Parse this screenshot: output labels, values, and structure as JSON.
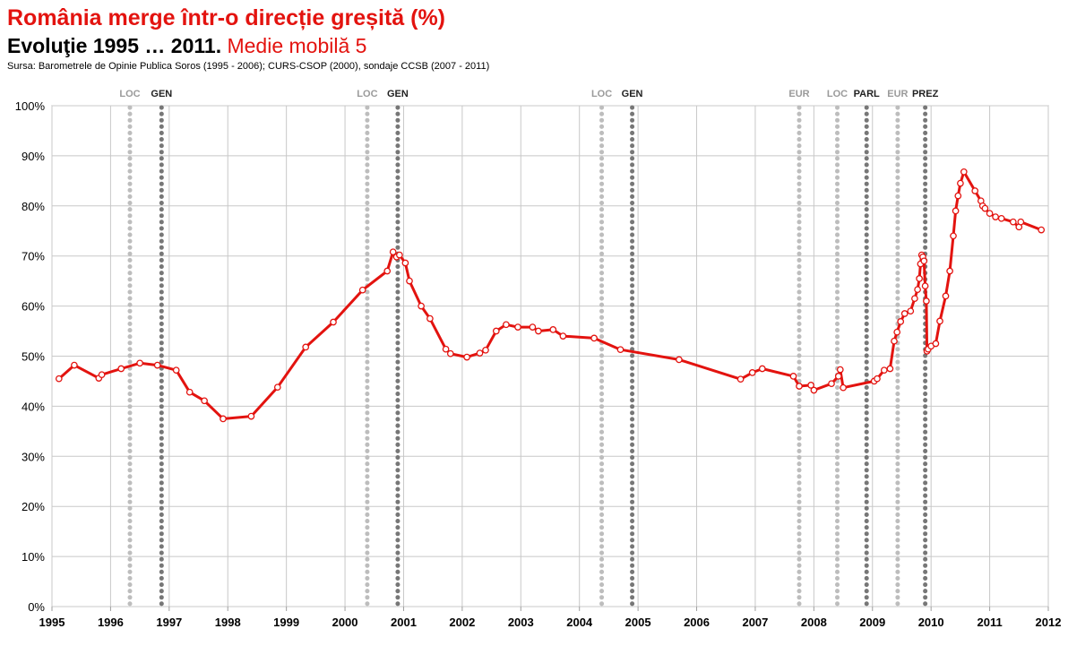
{
  "header": {
    "title": "România merge într-o direcție greșită (%)",
    "subtitle_main": "Evoluţie 1995 … 2011.",
    "subtitle_extra": "Medie mobilă 5",
    "source": "Sursa: Barometrele de Opinie Publica Soros (1995 - 2006); CURS-CSOP (2000), sondaje CCSB (2007 - 2011)"
  },
  "colors": {
    "series": "#e3130f",
    "event_light": "#bdbdbd",
    "event_dark": "#777777",
    "label_light": "#9a9a9a",
    "label_dark": "#222222",
    "grid": "#c8c8c8"
  },
  "chart_data": {
    "type": "line",
    "title": "România merge într-o direcție greșită (%)",
    "xlim": [
      1995,
      2012
    ],
    "ylim": [
      0,
      100
    ],
    "x_ticks": [
      "1995",
      "1996",
      "1997",
      "1998",
      "1999",
      "2000",
      "2001",
      "2002",
      "2003",
      "2004",
      "2005",
      "2006",
      "2007",
      "2008",
      "2009",
      "2010",
      "2011",
      "2012"
    ],
    "y_ticks": [
      "0%",
      "10%",
      "20%",
      "30%",
      "40%",
      "50%",
      "60%",
      "70%",
      "80%",
      "90%",
      "100%"
    ],
    "grid": true,
    "events": [
      {
        "x": 1996.33,
        "label": "LOC",
        "style": "light"
      },
      {
        "x": 1996.87,
        "label": "GEN",
        "style": "dark"
      },
      {
        "x": 2000.38,
        "label": "LOC",
        "style": "light"
      },
      {
        "x": 2000.9,
        "label": "GEN",
        "style": "dark"
      },
      {
        "x": 2004.38,
        "label": "LOC",
        "style": "light"
      },
      {
        "x": 2004.9,
        "label": "GEN",
        "style": "dark"
      },
      {
        "x": 2007.75,
        "label": "EUR",
        "style": "light"
      },
      {
        "x": 2008.4,
        "label": "LOC",
        "style": "light"
      },
      {
        "x": 2008.9,
        "label": "PARL",
        "style": "dark"
      },
      {
        "x": 2009.43,
        "label": "EUR",
        "style": "light"
      },
      {
        "x": 2009.9,
        "label": "PREZ",
        "style": "dark"
      }
    ],
    "series": [
      {
        "x": [
          1995.12,
          1995.38,
          1995.8,
          1995.85,
          1996.18,
          1996.5,
          1996.8,
          1997.12,
          1997.35,
          1997.6,
          1997.92,
          1998.4,
          1998.85,
          1999.33,
          1999.8,
          2000.3,
          2000.72,
          2000.82,
          2000.88,
          2000.93,
          2001.03,
          2001.1,
          2001.3,
          2001.45,
          2001.72,
          2001.8,
          2002.08,
          2002.3,
          2002.4,
          2002.58,
          2002.75,
          2002.95,
          2003.2,
          2003.3,
          2003.55,
          2003.72,
          2004.25,
          2004.7,
          2005.7,
          2006.75,
          2006.95,
          2007.12,
          2007.65,
          2007.75,
          2007.95,
          2008.0,
          2008.3,
          2008.42,
          2008.45,
          2008.5,
          2009.03,
          2009.08,
          2009.2,
          2009.3,
          2009.37,
          2009.42,
          2009.48,
          2009.55,
          2009.65,
          2009.72,
          2009.77,
          2009.8,
          2009.82,
          2009.84,
          2009.86,
          2009.88,
          2009.9,
          2009.92,
          2009.93,
          2009.95,
          2010.0,
          2010.08,
          2010.15,
          2010.25,
          2010.32,
          2010.38,
          2010.42,
          2010.46,
          2010.5,
          2010.56,
          2010.75,
          2010.85,
          2010.88,
          2010.92,
          2011.0,
          2011.1,
          2011.2,
          2011.4,
          2011.5,
          2011.53,
          2011.88
        ],
        "values": [
          45.5,
          48.2,
          45.6,
          46.3,
          47.5,
          48.6,
          48.2,
          47.2,
          42.8,
          41.1,
          37.5,
          38.0,
          43.8,
          51.8,
          56.8,
          63.2,
          67.0,
          70.8,
          69.8,
          70.2,
          68.6,
          65.0,
          60.0,
          57.5,
          51.4,
          50.5,
          49.8,
          50.6,
          51.2,
          55.0,
          56.3,
          55.8,
          55.8,
          55.0,
          55.3,
          54.0,
          53.6,
          51.3,
          49.3,
          45.4,
          46.7,
          47.5,
          46.0,
          44.0,
          44.2,
          43.2,
          44.5,
          46.0,
          47.3,
          43.7,
          45.0,
          45.5,
          47.2,
          47.5,
          53.0,
          54.8,
          56.9,
          58.5,
          59.0,
          61.5,
          63.3,
          65.5,
          68.4,
          70.2,
          69.8,
          69.0,
          64.0,
          61.0,
          51.0,
          51.4,
          52.0,
          52.5,
          57.0,
          62.0,
          67.0,
          74.0,
          79.0,
          82.0,
          84.5,
          86.8,
          83.0,
          81.0,
          80.0,
          79.5,
          78.5,
          77.8,
          77.5,
          76.8,
          75.8,
          76.8,
          75.2
        ]
      }
    ]
  }
}
